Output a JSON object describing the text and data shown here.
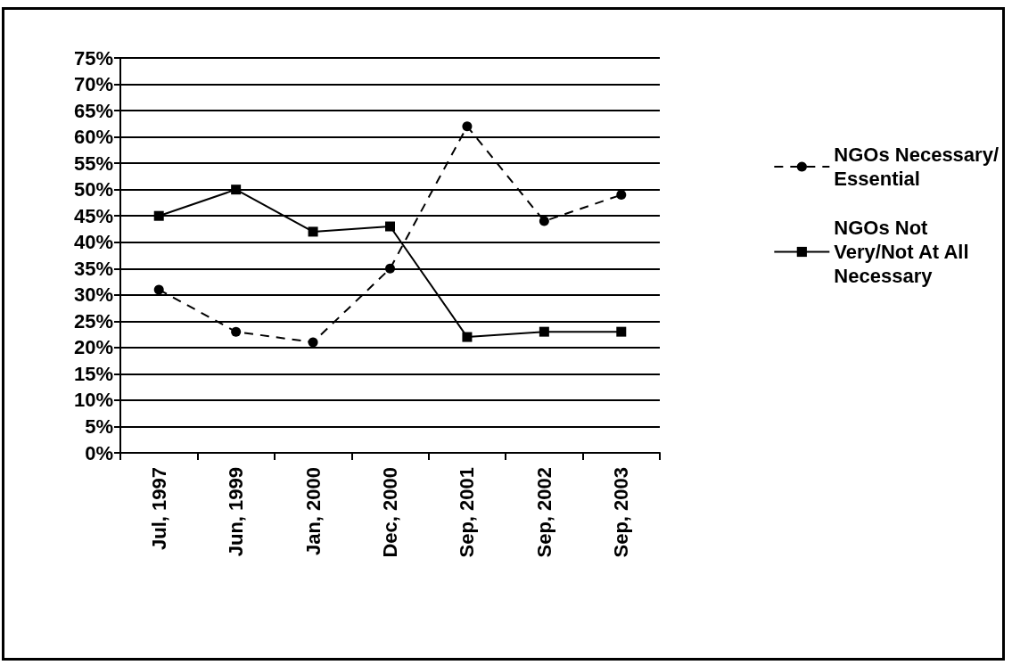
{
  "chart_data": {
    "type": "line",
    "categories": [
      "Jul, 1997",
      "Jun, 1999",
      "Jan, 2000",
      "Dec, 2000",
      "Sep, 2001",
      "Sep, 2002",
      "Sep, 2003"
    ],
    "series": [
      {
        "name": "NGOs Necessary/\nEssential",
        "color": "#000000",
        "values": [
          31,
          23,
          21,
          35,
          62,
          44,
          49
        ],
        "marker": "circle",
        "line_style": "dashed"
      },
      {
        "name": "NGOs Not\nVery/Not At All\nNecessary",
        "color": "#000000",
        "values": [
          45,
          50,
          42,
          43,
          22,
          23,
          23
        ],
        "marker": "square",
        "line_style": "solid"
      }
    ],
    "ylim": [
      0,
      75
    ],
    "yticks": [
      {
        "value": 0,
        "label": "0%"
      },
      {
        "value": 5,
        "label": "5%"
      },
      {
        "value": 10,
        "label": "10%"
      },
      {
        "value": 15,
        "label": "15%"
      },
      {
        "value": 20,
        "label": "20%"
      },
      {
        "value": 25,
        "label": "25%"
      },
      {
        "value": 30,
        "label": "30%"
      },
      {
        "value": 35,
        "label": "35%"
      },
      {
        "value": 40,
        "label": "40%"
      },
      {
        "value": 45,
        "label": "45%"
      },
      {
        "value": 50,
        "label": "50%"
      },
      {
        "value": 55,
        "label": "55%"
      },
      {
        "value": 60,
        "label": "60%"
      },
      {
        "value": 65,
        "label": "65%"
      },
      {
        "value": 70,
        "label": "70%"
      },
      {
        "value": 75,
        "label": "75%"
      }
    ],
    "grid": "y",
    "legend": "right"
  }
}
